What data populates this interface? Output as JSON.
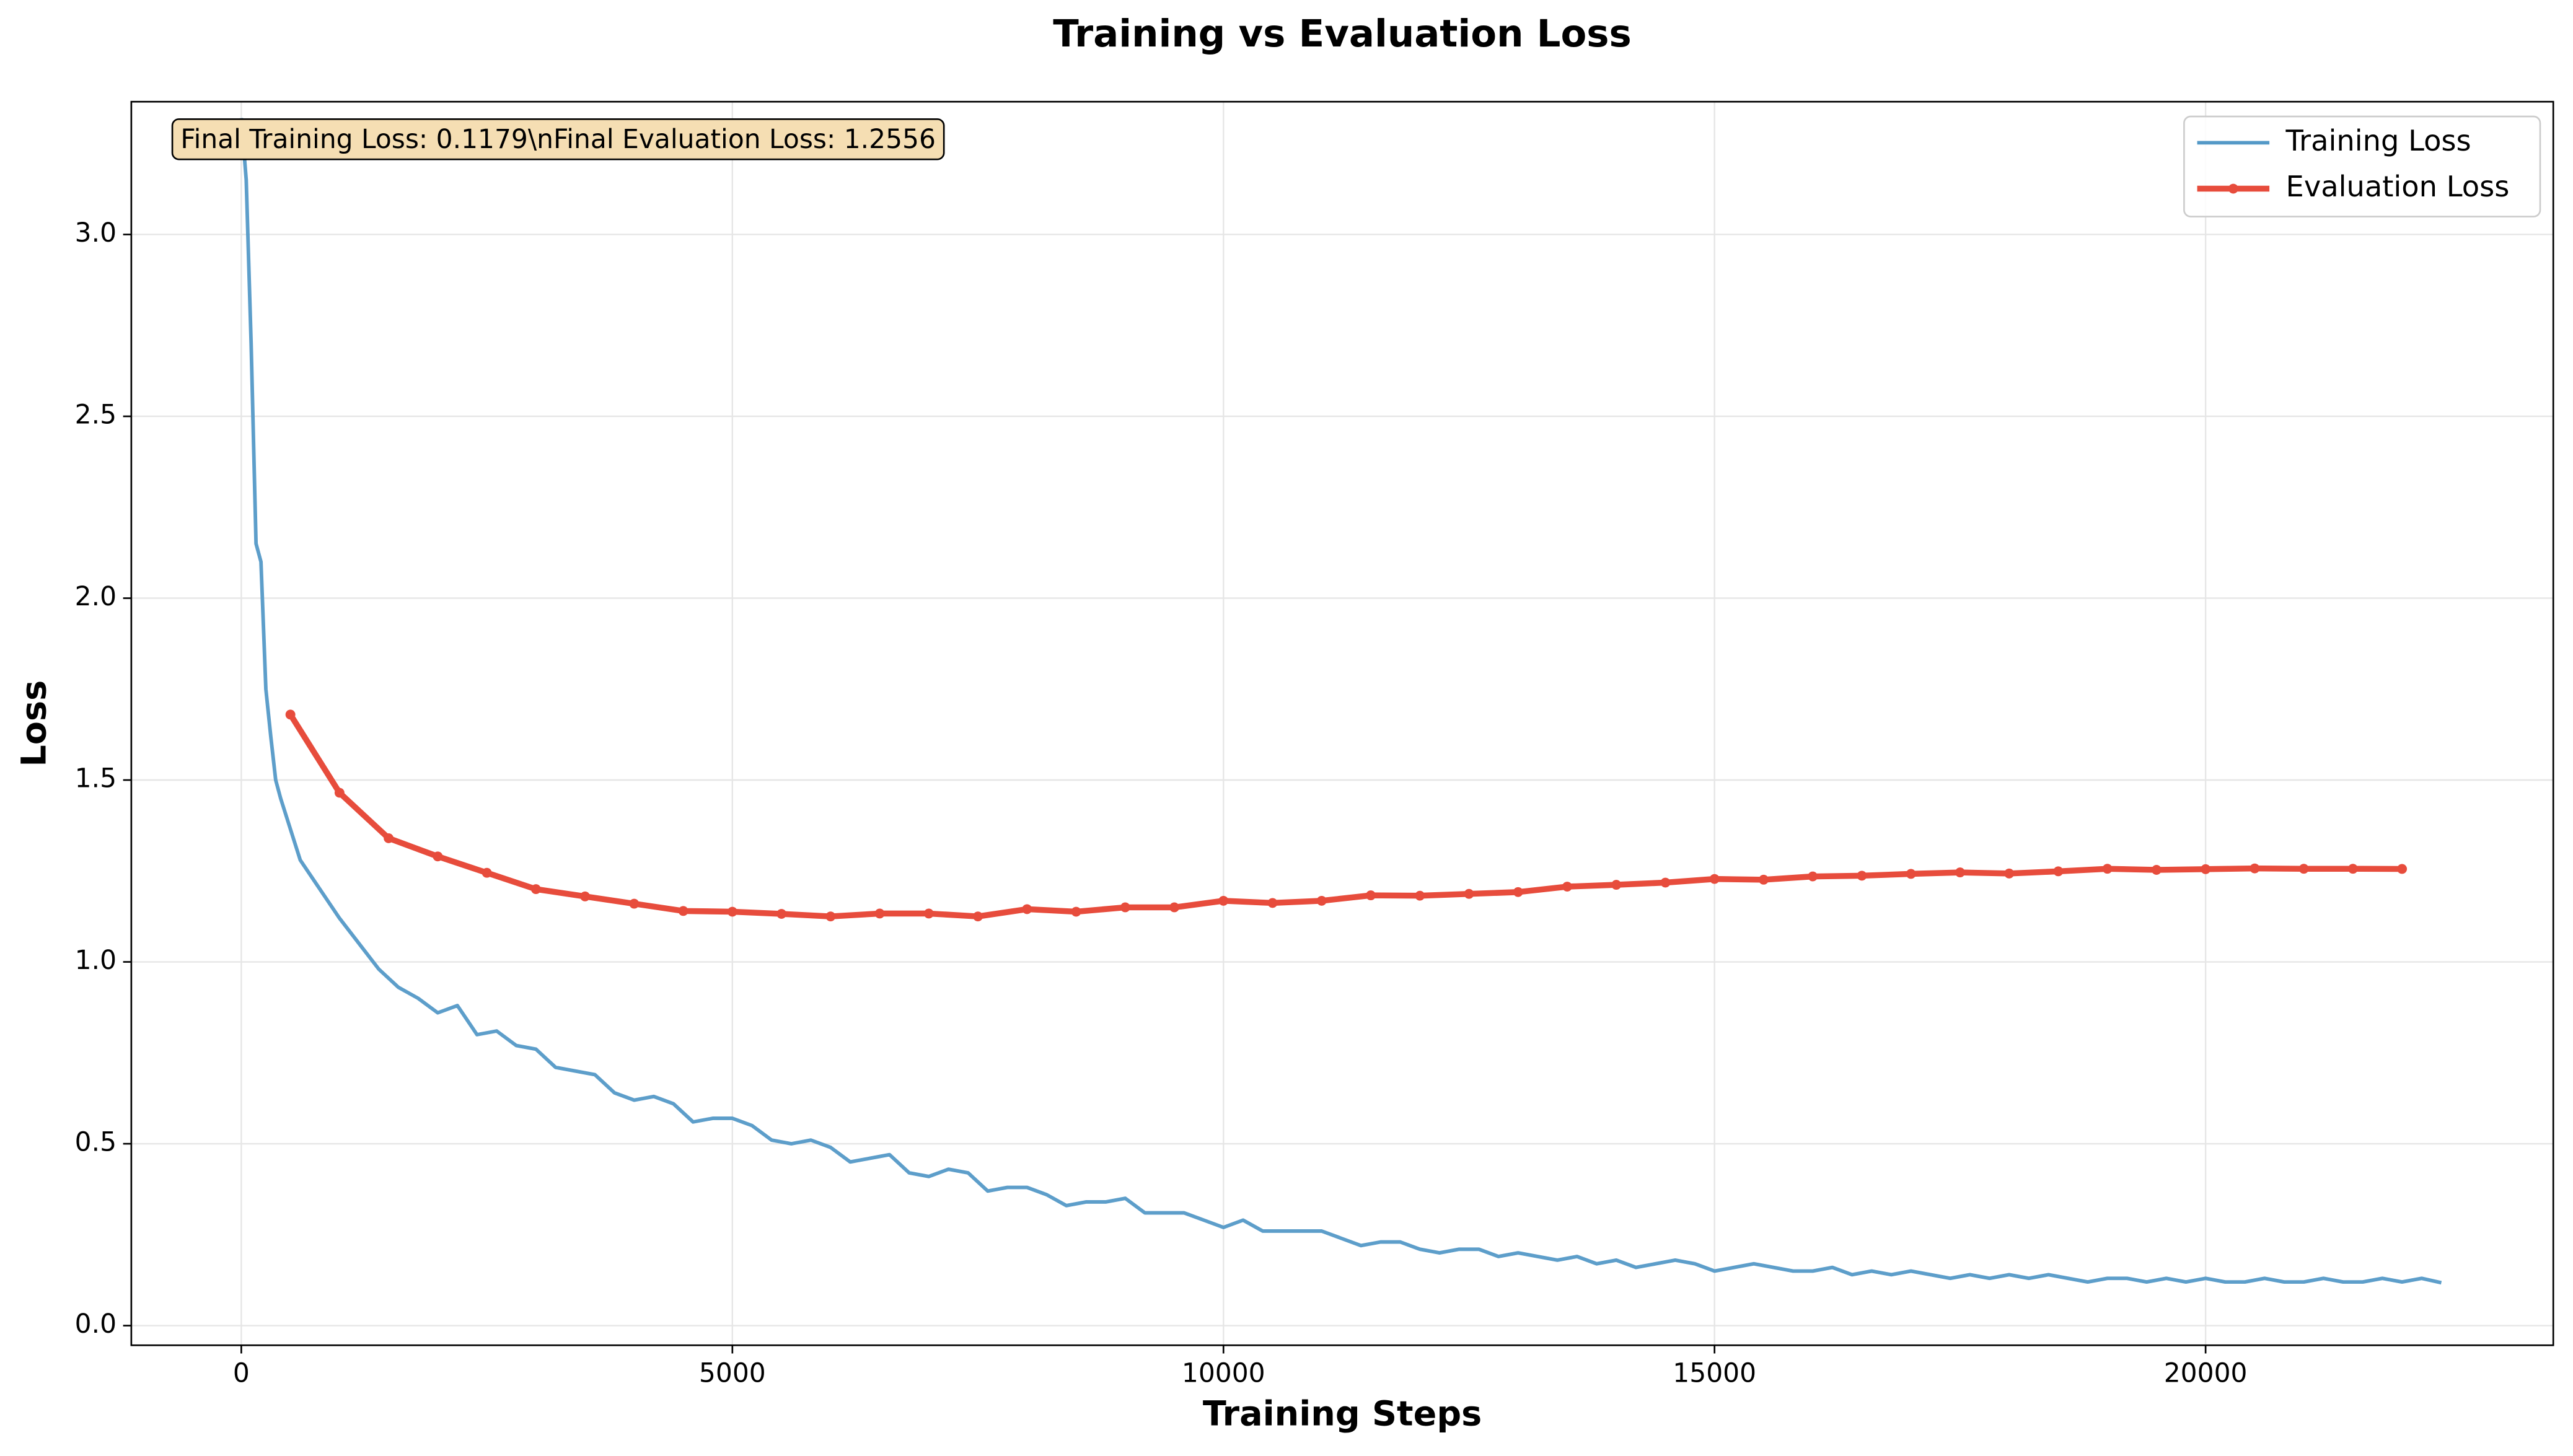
{
  "chart_data": {
    "type": "line",
    "title": "Training vs Evaluation Loss",
    "x_label": "Training Steps",
    "y_label": "Loss",
    "annotation": "Final Training Loss: 0.1179\\nFinal Evaluation Loss: 1.2556",
    "xlim": [
      -1120,
      23540
    ],
    "ylim": [
      -0.054,
      3.365
    ],
    "xticks": [
      0,
      5000,
      10000,
      15000,
      20000
    ],
    "yticks": [
      {
        "value": 0,
        "label": "0.0"
      },
      0.5,
      {
        "value": 1,
        "label": "1.0"
      },
      1.5,
      {
        "value": 2,
        "label": "2.0"
      },
      2.5,
      {
        "value": 3,
        "label": "3.0"
      }
    ],
    "grid": true,
    "legend": "upper right",
    "series": [
      {
        "name": "Training Loss",
        "color": "#5499c7",
        "x": [
          0,
          50,
          100,
          150,
          200,
          250,
          300,
          350,
          400,
          600,
          800,
          1000,
          1200,
          1400,
          1600,
          1800,
          2000,
          2200,
          2400,
          2600,
          2800,
          3000,
          3200,
          3400,
          3600,
          3800,
          4000,
          4200,
          4400,
          4600,
          4800,
          5000,
          5200,
          5400,
          5600,
          5800,
          6000,
          6200,
          6400,
          6600,
          6800,
          7000,
          7200,
          7400,
          7600,
          7800,
          8000,
          8200,
          8400,
          8600,
          8800,
          9000,
          9200,
          9400,
          9600,
          9800,
          10000,
          10200,
          10400,
          10600,
          10800,
          11000,
          11200,
          11400,
          11600,
          11800,
          12000,
          12200,
          12400,
          12600,
          12800,
          13000,
          13200,
          13400,
          13600,
          13800,
          14000,
          14200,
          14400,
          14600,
          14800,
          15000,
          15200,
          15400,
          15600,
          15800,
          16000,
          16200,
          16400,
          16600,
          16800,
          17000,
          17200,
          17400,
          17600,
          17800,
          18000,
          18200,
          18400,
          18600,
          18800,
          19000,
          19200,
          19400,
          19600,
          19800,
          20000,
          20200,
          20400,
          20600,
          20800,
          21000,
          21200,
          21400,
          21600,
          21800,
          22000,
          22200,
          22400
        ],
        "values": [
          3.32,
          3.15,
          2.7,
          2.15,
          2.1,
          1.75,
          1.62,
          1.5,
          1.45,
          1.28,
          1.2,
          1.12,
          1.05,
          0.98,
          0.93,
          0.9,
          0.86,
          0.88,
          0.8,
          0.81,
          0.77,
          0.76,
          0.71,
          0.7,
          0.69,
          0.64,
          0.62,
          0.63,
          0.61,
          0.56,
          0.57,
          0.57,
          0.55,
          0.51,
          0.5,
          0.51,
          0.49,
          0.45,
          0.46,
          0.47,
          0.42,
          0.41,
          0.43,
          0.42,
          0.37,
          0.38,
          0.38,
          0.36,
          0.33,
          0.34,
          0.34,
          0.35,
          0.31,
          0.31,
          0.31,
          0.29,
          0.27,
          0.29,
          0.26,
          0.26,
          0.26,
          0.26,
          0.24,
          0.22,
          0.23,
          0.23,
          0.21,
          0.2,
          0.21,
          0.21,
          0.19,
          0.2,
          0.19,
          0.18,
          0.19,
          0.17,
          0.18,
          0.16,
          0.17,
          0.18,
          0.17,
          0.15,
          0.16,
          0.17,
          0.16,
          0.15,
          0.15,
          0.16,
          0.14,
          0.15,
          0.14,
          0.15,
          0.14,
          0.13,
          0.14,
          0.13,
          0.14,
          0.13,
          0.14,
          0.13,
          0.12,
          0.13,
          0.13,
          0.12,
          0.13,
          0.12,
          0.13,
          0.12,
          0.12,
          0.13,
          0.12,
          0.12,
          0.13,
          0.12,
          0.12,
          0.13,
          0.12,
          0.13,
          0.1179
        ]
      },
      {
        "name": "Evaluation Loss",
        "color": "#e74c3c",
        "x": [
          500,
          1000,
          1500,
          2000,
          2500,
          3000,
          3500,
          4000,
          4500,
          5000,
          5500,
          6000,
          6500,
          7000,
          7500,
          8000,
          8500,
          9000,
          9500,
          10000,
          10500,
          11000,
          11500,
          12000,
          12500,
          13000,
          13500,
          14000,
          14500,
          15000,
          15500,
          16000,
          16500,
          17000,
          17500,
          18000,
          18500,
          19000,
          19500,
          20000,
          20500,
          21000,
          21500,
          22000
        ],
        "values": [
          1.68,
          1.465,
          1.34,
          1.29,
          1.245,
          1.2,
          1.18,
          1.16,
          1.14,
          1.138,
          1.132,
          1.125,
          1.133,
          1.133,
          1.125,
          1.145,
          1.138,
          1.15,
          1.15,
          1.168,
          1.162,
          1.168,
          1.183,
          1.182,
          1.187,
          1.192,
          1.207,
          1.212,
          1.218,
          1.228,
          1.226,
          1.235,
          1.237,
          1.242,
          1.246,
          1.243,
          1.249,
          1.256,
          1.253,
          1.255,
          1.257,
          1.256,
          1.256,
          1.2556
        ]
      }
    ]
  }
}
